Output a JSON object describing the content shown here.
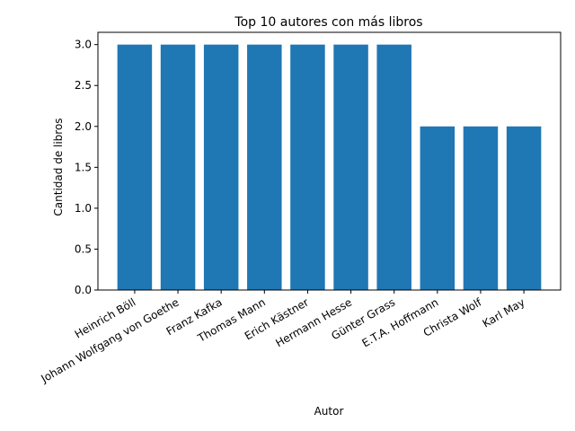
{
  "chart_data": {
    "type": "bar",
    "title": "Top 10 autores con más libros",
    "xlabel": "Autor",
    "ylabel": "Cantidad de libros",
    "categories": [
      "Heinrich Böll",
      "Johann Wolfgang von Goethe",
      "Franz Kafka",
      "Thomas Mann",
      "Erich Kästner",
      "Hermann Hesse",
      "Günter Grass",
      "E.T.A. Hoffmann",
      "Christa Wolf",
      "Karl May"
    ],
    "values": [
      3,
      3,
      3,
      3,
      3,
      3,
      3,
      2,
      2,
      2
    ],
    "ylim": [
      0,
      3.15
    ],
    "yticks": [
      "0.0",
      "0.5",
      "1.0",
      "1.5",
      "2.0",
      "2.5",
      "3.0"
    ],
    "bar_color": "#1f77b4",
    "grid": false,
    "legend": "none"
  }
}
